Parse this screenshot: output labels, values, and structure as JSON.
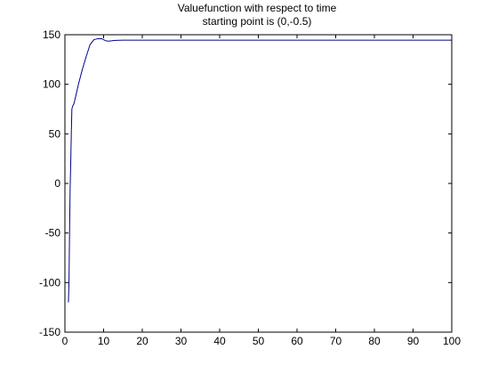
{
  "chart_data": {
    "type": "line",
    "title_lines": [
      "Valuefunction with respect to time",
      "starting point is (0,-0.5)"
    ],
    "xlabel": "",
    "ylabel": "",
    "xlim": [
      0,
      100
    ],
    "ylim": [
      -150,
      150
    ],
    "xticks": [
      0,
      10,
      20,
      30,
      40,
      50,
      60,
      70,
      80,
      90,
      100
    ],
    "yticks": [
      -150,
      -100,
      -50,
      0,
      50,
      100,
      150
    ],
    "xtick_labels": [
      "0",
      "10",
      "20",
      "30",
      "40",
      "50",
      "60",
      "70",
      "80",
      "90",
      "100"
    ],
    "ytick_labels": [
      "-150",
      "-100",
      "-50",
      "0",
      "50",
      "100",
      "150"
    ],
    "grid": false,
    "line_color": "#00008b",
    "series": [
      {
        "x": [
          0.9,
          1.05,
          1.2,
          1.35,
          1.5,
          1.65,
          1.8,
          2.0,
          2.3,
          2.8,
          3.5,
          4.5,
          5.5,
          6.5,
          7.5,
          8.5,
          9.5,
          10.5,
          11.2,
          12,
          13,
          15,
          20,
          30,
          40,
          50,
          60,
          70,
          80,
          90,
          100
        ],
        "y": [
          -120,
          -100,
          -50,
          -5,
          20,
          50,
          75,
          78,
          80,
          88,
          100,
          115,
          128,
          140,
          145,
          146,
          146,
          144,
          143.5,
          143.8,
          144.3,
          144.5,
          144.5,
          144.5,
          144.5,
          144.5,
          144.5,
          144.5,
          144.5,
          144.5,
          144.5
        ]
      }
    ]
  }
}
